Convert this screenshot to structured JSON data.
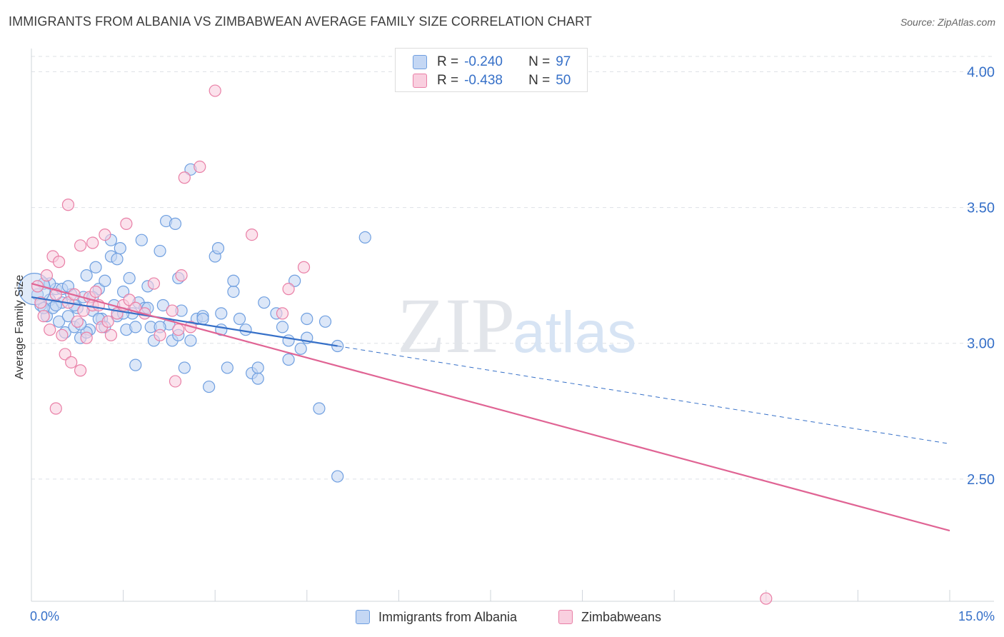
{
  "title": "IMMIGRANTS FROM ALBANIA VS ZIMBABWEAN AVERAGE FAMILY SIZE CORRELATION CHART",
  "source": "Source: ZipAtlas.com",
  "watermark": {
    "zip": "ZIP",
    "atlas": "atlas"
  },
  "stats": {
    "r_label": "R =",
    "n_label": "N =",
    "series": [
      {
        "r": "-0.240",
        "n": "97",
        "color": "#6f9fe0",
        "fill": "#c4d7f4"
      },
      {
        "r": "-0.438",
        "n": "50",
        "color": "#e97fa6",
        "fill": "#f9cfdf"
      }
    ]
  },
  "legend": [
    {
      "label": "Immigrants from Albania"
    },
    {
      "label": "Zimbabweans"
    }
  ],
  "chart_data": {
    "type": "scatter",
    "title": "IMMIGRANTS FROM ALBANIA VS ZIMBABWEAN AVERAGE FAMILY SIZE CORRELATION CHART",
    "xlabel": "",
    "ylabel": "Average Family Size",
    "xlim": [
      0,
      15
    ],
    "ylim": [
      2.05,
      4.08
    ],
    "x_tick_labels": [
      "0.0%",
      "15.0%"
    ],
    "y_ticks": [
      2.5,
      3.0,
      3.5,
      4.0
    ],
    "y_tick_labels": [
      "2.50",
      "3.00",
      "3.50",
      "4.00"
    ],
    "grid": true,
    "series": [
      {
        "name": "Immigrants from Albania",
        "color": "#6f9fe0",
        "fill": "#c4d7f4",
        "line_color": "#3670c8",
        "trend": {
          "x": [
            0.0,
            5.0
          ],
          "y": [
            3.17,
            2.99
          ]
        },
        "trend_dashed": {
          "x": [
            5.0,
            15.0
          ],
          "y": [
            2.99,
            2.63
          ]
        },
        "points": [
          [
            0.1,
            3.18
          ],
          [
            0.15,
            3.14
          ],
          [
            0.2,
            3.22
          ],
          [
            0.25,
            3.1
          ],
          [
            0.3,
            3.16
          ],
          [
            0.35,
            3.13
          ],
          [
            0.4,
            3.2
          ],
          [
            0.45,
            3.08
          ],
          [
            0.5,
            3.15
          ],
          [
            0.55,
            3.04
          ],
          [
            0.6,
            3.1
          ],
          [
            0.65,
            3.18
          ],
          [
            0.7,
            3.06
          ],
          [
            0.75,
            3.13
          ],
          [
            0.8,
            3.02
          ],
          [
            0.85,
            3.17
          ],
          [
            0.9,
            3.25
          ],
          [
            0.95,
            3.05
          ],
          [
            1.0,
            3.12
          ],
          [
            1.05,
            3.28
          ],
          [
            1.1,
            3.2
          ],
          [
            1.15,
            3.09
          ],
          [
            1.2,
            3.23
          ],
          [
            1.3,
            3.38
          ],
          [
            1.35,
            3.14
          ],
          [
            1.4,
            3.1
          ],
          [
            1.45,
            3.35
          ],
          [
            1.5,
            3.19
          ],
          [
            1.55,
            3.05
          ],
          [
            1.6,
            3.24
          ],
          [
            1.65,
            3.11
          ],
          [
            1.7,
            3.06
          ],
          [
            1.75,
            3.15
          ],
          [
            1.8,
            3.38
          ],
          [
            1.85,
            3.13
          ],
          [
            1.9,
            3.21
          ],
          [
            1.95,
            3.06
          ],
          [
            2.0,
            3.01
          ],
          [
            2.1,
            3.34
          ],
          [
            2.15,
            3.14
          ],
          [
            2.2,
            3.45
          ],
          [
            2.25,
            3.07
          ],
          [
            2.3,
            3.01
          ],
          [
            2.35,
            3.44
          ],
          [
            2.4,
            3.24
          ],
          [
            2.45,
            3.12
          ],
          [
            2.5,
            2.91
          ],
          [
            2.6,
            3.64
          ],
          [
            2.7,
            3.09
          ],
          [
            2.8,
            3.1
          ],
          [
            2.9,
            2.84
          ],
          [
            3.0,
            3.32
          ],
          [
            3.05,
            3.35
          ],
          [
            3.1,
            3.11
          ],
          [
            3.2,
            2.91
          ],
          [
            3.3,
            3.19
          ],
          [
            3.4,
            3.09
          ],
          [
            3.5,
            3.05
          ],
          [
            3.6,
            2.89
          ],
          [
            3.7,
            2.87
          ],
          [
            3.8,
            3.15
          ],
          [
            4.0,
            3.11
          ],
          [
            4.1,
            3.06
          ],
          [
            4.2,
            2.94
          ],
          [
            4.3,
            3.23
          ],
          [
            4.4,
            2.98
          ],
          [
            4.5,
            3.02
          ],
          [
            4.7,
            2.76
          ],
          [
            4.8,
            3.08
          ],
          [
            5.0,
            2.99
          ],
          [
            0.3,
            3.22
          ],
          [
            0.5,
            3.2
          ],
          [
            0.7,
            3.14
          ],
          [
            0.9,
            3.04
          ],
          [
            1.1,
            3.09
          ],
          [
            1.3,
            3.32
          ],
          [
            1.5,
            3.11
          ],
          [
            1.7,
            2.92
          ],
          [
            1.9,
            3.13
          ],
          [
            2.1,
            3.06
          ],
          [
            2.4,
            3.03
          ],
          [
            2.6,
            3.01
          ],
          [
            2.8,
            3.09
          ],
          [
            3.1,
            3.05
          ],
          [
            3.3,
            3.23
          ],
          [
            3.7,
            2.91
          ],
          [
            4.2,
            3.01
          ],
          [
            4.5,
            3.09
          ],
          [
            5.0,
            2.51
          ],
          [
            5.45,
            3.39
          ],
          [
            0.2,
            3.13
          ],
          [
            0.4,
            3.14
          ],
          [
            0.6,
            3.21
          ],
          [
            0.8,
            3.07
          ],
          [
            1.0,
            3.17
          ],
          [
            1.2,
            3.06
          ],
          [
            1.4,
            3.31
          ]
        ]
      },
      {
        "name": "Zimbabweans",
        "color": "#e97fa6",
        "fill": "#f9cfdf",
        "line_color": "#e06494",
        "trend": {
          "x": [
            0.0,
            15.0
          ],
          "y": [
            3.22,
            2.31
          ]
        },
        "points": [
          [
            0.1,
            3.21
          ],
          [
            0.15,
            3.15
          ],
          [
            0.2,
            3.1
          ],
          [
            0.25,
            3.25
          ],
          [
            0.3,
            3.05
          ],
          [
            0.35,
            3.32
          ],
          [
            0.4,
            3.18
          ],
          [
            0.45,
            3.3
          ],
          [
            0.5,
            3.03
          ],
          [
            0.55,
            2.96
          ],
          [
            0.6,
            3.15
          ],
          [
            0.65,
            2.93
          ],
          [
            0.7,
            3.18
          ],
          [
            0.75,
            3.08
          ],
          [
            0.8,
            2.9
          ],
          [
            0.85,
            3.12
          ],
          [
            0.9,
            3.02
          ],
          [
            0.95,
            3.17
          ],
          [
            1.0,
            3.14
          ],
          [
            1.05,
            3.19
          ],
          [
            1.1,
            3.14
          ],
          [
            1.15,
            3.06
          ],
          [
            1.2,
            3.4
          ],
          [
            1.25,
            3.08
          ],
          [
            1.3,
            3.03
          ],
          [
            1.4,
            3.11
          ],
          [
            1.5,
            3.14
          ],
          [
            1.55,
            3.44
          ],
          [
            1.6,
            3.16
          ],
          [
            1.7,
            3.13
          ],
          [
            1.85,
            3.11
          ],
          [
            2.0,
            3.22
          ],
          [
            2.1,
            3.03
          ],
          [
            2.3,
            3.12
          ],
          [
            2.35,
            2.86
          ],
          [
            2.4,
            3.05
          ],
          [
            2.45,
            3.25
          ],
          [
            2.5,
            3.61
          ],
          [
            2.6,
            3.06
          ],
          [
            2.75,
            3.65
          ],
          [
            3.0,
            3.93
          ],
          [
            3.6,
            3.4
          ],
          [
            4.1,
            3.11
          ],
          [
            4.2,
            3.2
          ],
          [
            4.45,
            3.28
          ],
          [
            0.4,
            2.76
          ],
          [
            0.6,
            3.51
          ],
          [
            0.8,
            3.36
          ],
          [
            1.0,
            3.37
          ],
          [
            12.0,
            2.06
          ]
        ]
      }
    ]
  }
}
